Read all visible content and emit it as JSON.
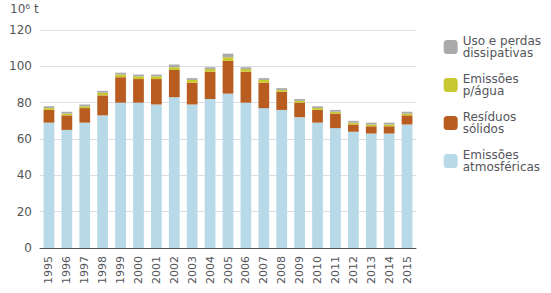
{
  "chart_data": {
    "type": "bar",
    "ylabel": "10⁶ t",
    "categories": [
      1995,
      1996,
      1997,
      1998,
      1999,
      2000,
      2001,
      2002,
      2003,
      2004,
      2005,
      2006,
      2007,
      2008,
      2009,
      2010,
      2011,
      2012,
      2013,
      2014,
      2015
    ],
    "series": [
      {
        "name": "Emissões\natmosféricas",
        "color": "#b8d9e8",
        "values": [
          69,
          65,
          69,
          73,
          80,
          80,
          79,
          83,
          79,
          82,
          85,
          80,
          77,
          76,
          72,
          69,
          66,
          64,
          63,
          63,
          68
        ]
      },
      {
        "name": "Resíduos\nsólidos",
        "color": "#b85c20",
        "values": [
          7,
          8,
          8,
          11,
          14,
          13,
          14,
          15,
          12,
          15,
          18,
          17,
          14,
          10,
          8,
          7,
          8,
          4,
          4,
          4,
          5
        ]
      },
      {
        "name": "Emissões\np/água",
        "color": "#c8c830",
        "values": [
          1,
          1,
          1,
          1.5,
          1.5,
          1.5,
          1.5,
          1.5,
          1.5,
          1.5,
          2,
          1.5,
          1.5,
          1,
          1,
          1,
          1,
          1,
          1,
          1,
          1
        ]
      },
      {
        "name": "Uso e perdas\ndissipativas",
        "color": "#aaaaaa",
        "values": [
          1,
          1,
          1,
          1,
          1,
          1,
          1,
          1.5,
          1,
          1,
          2,
          1,
          1,
          1,
          1,
          1,
          1,
          1,
          1,
          1,
          1
        ]
      }
    ],
    "stacked": true,
    "ylim": [
      0,
      120
    ],
    "yticks": [
      0,
      20,
      40,
      60,
      80,
      100,
      120
    ],
    "grid": true,
    "legend": "right"
  }
}
